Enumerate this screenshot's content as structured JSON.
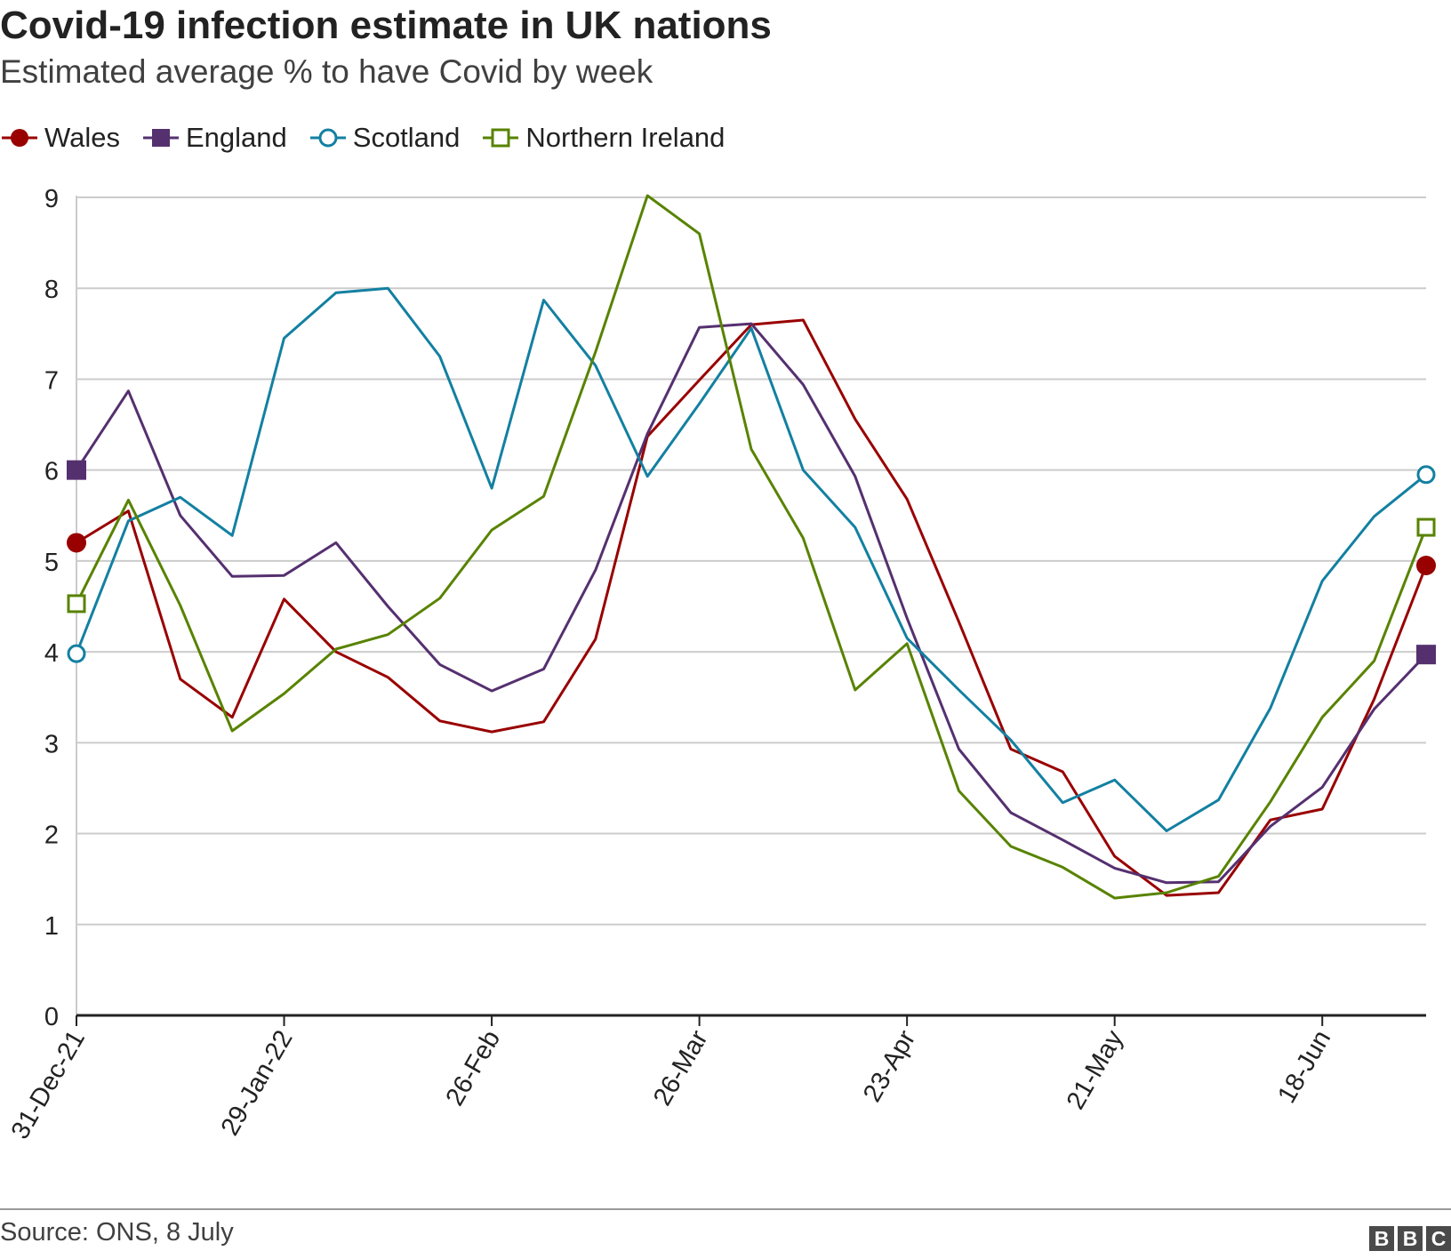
{
  "header": {
    "title": "Covid-19 infection estimate in UK nations",
    "subtitle": "Estimated average % to have Covid by week"
  },
  "footer": {
    "source": "Source: ONS, 8 July",
    "logo_letters": [
      "B",
      "B",
      "C"
    ]
  },
  "chart_data": {
    "type": "line",
    "title": "Covid-19 infection estimate in UK nations",
    "subtitle": "Estimated average % to have Covid by week",
    "xlabel": "",
    "ylabel": "",
    "ylim": [
      0,
      9
    ],
    "y_ticks": [
      "0",
      "1",
      "2",
      "3",
      "4",
      "5",
      "6",
      "7",
      "8",
      "9"
    ],
    "x_ticks": [
      {
        "index": 0,
        "label": "31-Dec-21"
      },
      {
        "index": 4,
        "label": "29-Jan-22"
      },
      {
        "index": 8,
        "label": "26-Feb"
      },
      {
        "index": 12,
        "label": "26-Mar"
      },
      {
        "index": 16,
        "label": "23-Apr"
      },
      {
        "index": 20,
        "label": "21-May"
      },
      {
        "index": 24,
        "label": "18-Jun"
      }
    ],
    "x": [
      "31-Dec-21",
      "07-Jan-22",
      "14-Jan-22",
      "21-Jan-22",
      "29-Jan-22",
      "05-Feb",
      "12-Feb",
      "19-Feb",
      "26-Feb",
      "05-Mar",
      "12-Mar",
      "19-Mar",
      "26-Mar",
      "02-Apr",
      "09-Apr",
      "16-Apr",
      "23-Apr",
      "30-Apr",
      "07-May",
      "14-May",
      "21-May",
      "28-May",
      "04-Jun",
      "11-Jun",
      "18-Jun",
      "25-Jun",
      "02-Jul"
    ],
    "grid": true,
    "legend_position": "top-left",
    "series": [
      {
        "name": "Wales",
        "color": "#990000",
        "marker": "filled-circle",
        "values": [
          5.2,
          5.55,
          3.7,
          3.28,
          4.58,
          4.0,
          3.72,
          3.24,
          3.12,
          3.23,
          4.14,
          6.37,
          6.99,
          7.6,
          7.65,
          6.56,
          5.68,
          4.33,
          2.93,
          2.68,
          1.75,
          1.32,
          1.35,
          2.15,
          2.27,
          3.48,
          4.95
        ]
      },
      {
        "name": "England",
        "color": "#55306f",
        "marker": "filled-square",
        "values": [
          6.0,
          6.87,
          5.5,
          4.83,
          4.84,
          5.2,
          4.5,
          3.86,
          3.57,
          3.81,
          4.9,
          6.4,
          7.57,
          7.61,
          6.94,
          5.93,
          4.37,
          2.93,
          2.23,
          1.93,
          1.62,
          1.46,
          1.47,
          2.08,
          2.51,
          3.37,
          3.97
        ]
      },
      {
        "name": "Scotland",
        "color": "#1380a1",
        "marker": "open-circle",
        "values": [
          3.98,
          5.44,
          5.7,
          5.28,
          7.45,
          7.95,
          8.0,
          7.25,
          5.8,
          7.87,
          7.15,
          5.93,
          6.73,
          7.56,
          6.0,
          5.37,
          4.15,
          3.58,
          3.03,
          2.34,
          2.59,
          2.03,
          2.37,
          3.38,
          4.78,
          5.49,
          5.95
        ]
      },
      {
        "name": "Northern Ireland",
        "color": "#588300",
        "marker": "open-square",
        "values": [
          4.53,
          5.67,
          4.51,
          3.13,
          3.54,
          4.03,
          4.19,
          4.59,
          5.34,
          5.71,
          7.3,
          9.02,
          8.6,
          6.23,
          5.25,
          3.58,
          4.09,
          2.47,
          1.86,
          1.63,
          1.29,
          1.35,
          1.53,
          2.35,
          3.28,
          3.9,
          5.37
        ]
      }
    ]
  }
}
